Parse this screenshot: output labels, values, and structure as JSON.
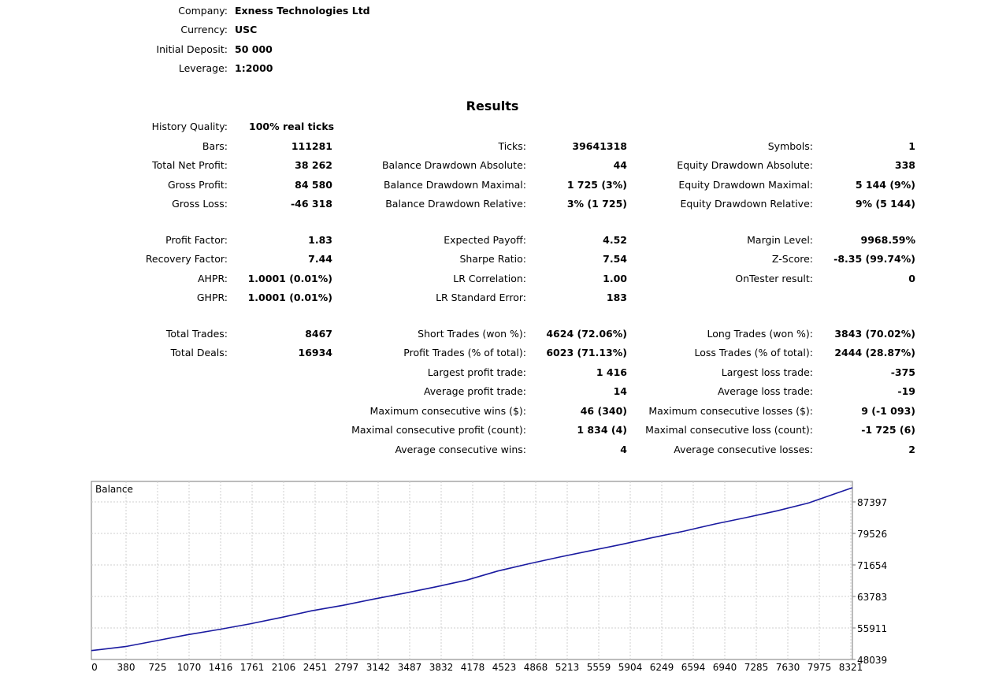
{
  "header": {
    "company_label": "Company:",
    "company_value": "Exness Technologies Ltd",
    "currency_label": "Currency:",
    "currency_value": "USC",
    "deposit_label": "Initial Deposit:",
    "deposit_value": "50 000",
    "leverage_label": "Leverage:",
    "leverage_value": "1:2000"
  },
  "results_title": "Results",
  "history_quality": {
    "label": "History Quality:",
    "value": "100% real ticks"
  },
  "col1": [
    {
      "label": "Bars:",
      "value": "111281"
    },
    {
      "label": "Total Net Profit:",
      "value": "38 262"
    },
    {
      "label": "Gross Profit:",
      "value": "84 580"
    },
    {
      "label": "Gross Loss:",
      "value": "-46 318"
    },
    {
      "label": "Profit Factor:",
      "value": "1.83"
    },
    {
      "label": "Recovery Factor:",
      "value": "7.44"
    },
    {
      "label": "AHPR:",
      "value": "1.0001 (0.01%)"
    },
    {
      "label": "GHPR:",
      "value": "1.0001 (0.01%)"
    },
    {
      "label": "Total Trades:",
      "value": "8467"
    },
    {
      "label": "Total Deals:",
      "value": "16934"
    }
  ],
  "col2": [
    {
      "label": "Ticks:",
      "value": "39641318"
    },
    {
      "label": "Balance Drawdown Absolute:",
      "value": "44"
    },
    {
      "label": "Balance Drawdown Maximal:",
      "value": "1 725 (3%)"
    },
    {
      "label": "Balance Drawdown Relative:",
      "value": "3% (1 725)"
    },
    {
      "label": "Expected Payoff:",
      "value": "4.52"
    },
    {
      "label": "Sharpe Ratio:",
      "value": "7.54"
    },
    {
      "label": "LR Correlation:",
      "value": "1.00"
    },
    {
      "label": "LR Standard Error:",
      "value": "183"
    },
    {
      "label": "Short Trades (won %):",
      "value": "4624 (72.06%)"
    },
    {
      "label": "Profit Trades (% of total):",
      "value": "6023 (71.13%)"
    },
    {
      "label": "Largest profit trade:",
      "value": "1 416"
    },
    {
      "label": "Average profit trade:",
      "value": "14"
    },
    {
      "label": "Maximum consecutive wins ($):",
      "value": "46 (340)"
    },
    {
      "label": "Maximal consecutive profit (count):",
      "value": "1 834 (4)"
    },
    {
      "label": "Average consecutive wins:",
      "value": "4"
    }
  ],
  "col3": [
    {
      "label": "Symbols:",
      "value": "1"
    },
    {
      "label": "Equity Drawdown Absolute:",
      "value": "338"
    },
    {
      "label": "Equity Drawdown Maximal:",
      "value": "5 144 (9%)"
    },
    {
      "label": "Equity Drawdown Relative:",
      "value": "9% (5 144)"
    },
    {
      "label": "Margin Level:",
      "value": "9968.59%"
    },
    {
      "label": "Z-Score:",
      "value": "-8.35 (99.74%)"
    },
    {
      "label": "OnTester result:",
      "value": "0"
    },
    {
      "label": "Long Trades (won %):",
      "value": "3843 (70.02%)"
    },
    {
      "label": "Loss Trades (% of total):",
      "value": "2444 (28.87%)"
    },
    {
      "label": "Largest loss trade:",
      "value": "-375"
    },
    {
      "label": "Average loss trade:",
      "value": "-19"
    },
    {
      "label": "Maximum consecutive losses ($):",
      "value": "9 (-1 093)"
    },
    {
      "label": "Maximal consecutive loss (count):",
      "value": "-1 725 (6)"
    },
    {
      "label": "Average consecutive losses:",
      "value": "2"
    }
  ],
  "chart_data": {
    "type": "line",
    "title": "Balance",
    "x_ticks": [
      "0",
      "380",
      "725",
      "1070",
      "1416",
      "1761",
      "2106",
      "2451",
      "2797",
      "3142",
      "3487",
      "3832",
      "4178",
      "4523",
      "4868",
      "5213",
      "5559",
      "5904",
      "6249",
      "6594",
      "6940",
      "7285",
      "7630",
      "7975",
      "8321"
    ],
    "y_ticks": [
      "87397",
      "79526",
      "71654",
      "63783",
      "55911",
      "48039"
    ],
    "xlim": [
      0,
      8467
    ],
    "ylim": [
      48039,
      87397
    ],
    "grid": true,
    "line_color": "#1a1aa0",
    "series": [
      {
        "x": [
          0,
          380,
          725,
          1070,
          1416,
          1761,
          2106,
          2451,
          2797,
          3142,
          3487,
          3832,
          4178,
          4523,
          4868,
          5213,
          5559,
          5904,
          6249,
          6594,
          6940,
          7285,
          7630,
          7975,
          8321,
          8467
        ],
        "y": [
          50000,
          50900,
          52200,
          53500,
          54650,
          55900,
          57300,
          58800,
          60000,
          61400,
          62700,
          64100,
          65600,
          67600,
          69200,
          70700,
          72100,
          73500,
          75000,
          76400,
          78000,
          79400,
          80900,
          82600,
          85000,
          86000
        ]
      }
    ]
  }
}
